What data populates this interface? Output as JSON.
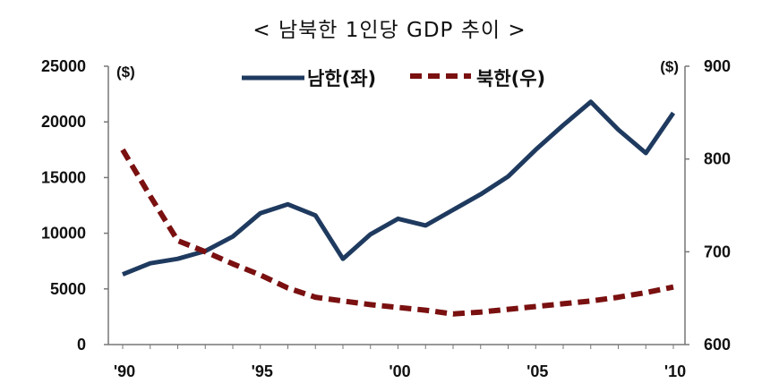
{
  "chart_data": {
    "type": "line",
    "title": "< 남북한 1인당 GDP 추이 >",
    "left_unit": "($)",
    "right_unit": "($)",
    "x": [
      1990,
      1991,
      1992,
      1993,
      1994,
      1995,
      1996,
      1997,
      1998,
      1999,
      2000,
      2001,
      2002,
      2003,
      2004,
      2005,
      2006,
      2007,
      2008,
      2009,
      2010
    ],
    "x_tick_labels": [
      "'90",
      "'95",
      "'00",
      "'05",
      "'10"
    ],
    "x_tick_values": [
      1990,
      1995,
      2000,
      2005,
      2010
    ],
    "y_left": {
      "range": [
        0,
        25000
      ],
      "ticks": [
        "0",
        "5000",
        "10000",
        "15000",
        "20000",
        "25000"
      ]
    },
    "y_right": {
      "range": [
        600,
        900
      ],
      "ticks": [
        "600",
        "700",
        "800",
        "900"
      ]
    },
    "legend_position": "top",
    "series": [
      {
        "name": "남한(좌)",
        "axis": "left",
        "style": "solid",
        "color": "#1f3a5f",
        "values": [
          6300,
          7300,
          7700,
          8400,
          9700,
          11800,
          12600,
          11600,
          7700,
          9900,
          11300,
          10700,
          12100,
          13500,
          15100,
          17500,
          19700,
          21800,
          19300,
          17200,
          20800
        ]
      },
      {
        "name": "북한(우)",
        "axis": "right",
        "style": "dashed",
        "color": "#7a1010",
        "values": [
          810,
          760,
          712,
          700,
          687,
          675,
          661,
          651,
          647,
          643,
          640,
          637,
          633,
          635,
          638,
          641,
          644,
          647,
          651,
          656,
          662
        ]
      }
    ]
  }
}
